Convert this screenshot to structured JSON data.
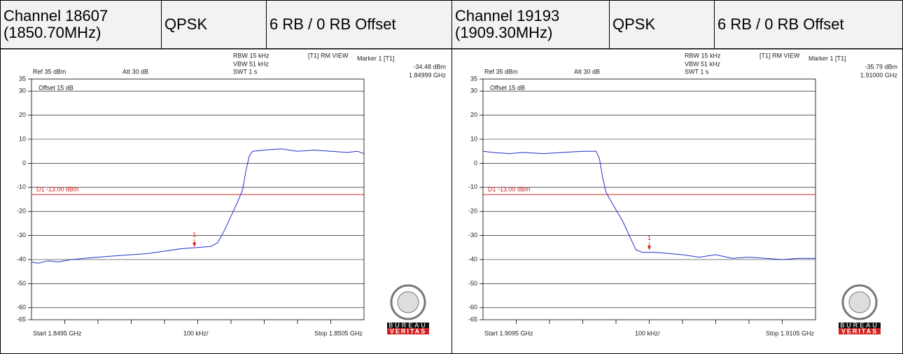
{
  "table": {
    "rows": [
      [
        "Channel 18607 (1850.70MHz)",
        "QPSK",
        "6 RB / 0 RB Offset",
        "Channel 19193 (1909.30MHz)",
        "QPSK",
        "6 RB / 0 RB Offset"
      ]
    ]
  },
  "plots": [
    {
      "ref": "Ref 35 dBm",
      "att": "Att 30 dB",
      "rbw": "RBW 15 kHz",
      "vbw": "VBW 51 kHz",
      "swt": "SWT 1 s",
      "view": "[T1] RM VIEW",
      "marker_title": "Marker 1 [T1]",
      "marker_level": "-34.48 dBm",
      "marker_freq": "1.84999 GHz",
      "offset": "Offset 15 dB",
      "display_line": {
        "label": "D1 -13.00 dBm",
        "value": -13
      },
      "start": "Start 1.8495 GHz",
      "span": "100 kHz/",
      "stop": "Stop 1.8505 GHz",
      "xlim": [
        1.8495,
        1.8505
      ],
      "ylim": [
        -65,
        35
      ],
      "yticks": [
        35,
        30,
        20,
        10,
        0,
        -10,
        -20,
        -30,
        -40,
        -50,
        -60,
        -65
      ],
      "marker": {
        "label": "1",
        "x": 1.84999,
        "y": -34.48
      },
      "trace": {
        "x": [
          1.8495,
          1.84952,
          1.84955,
          1.84958,
          1.84962,
          1.84966,
          1.8497,
          1.84975,
          1.8498,
          1.84985,
          1.8499,
          1.84995,
          1.85,
          1.85004,
          1.85006,
          1.85008,
          1.8501,
          1.85012,
          1.850135,
          1.850145,
          1.850155,
          1.850165,
          1.8502,
          1.85025,
          1.8503,
          1.85035,
          1.8504,
          1.85045,
          1.85048,
          1.8505
        ],
        "y": [
          -41,
          -41.5,
          -40.5,
          -41,
          -40,
          -39.5,
          -39,
          -38.5,
          -38,
          -37.5,
          -36.5,
          -35.5,
          -35,
          -34.5,
          -33,
          -28,
          -22,
          -16,
          -11,
          -3,
          3,
          5,
          5.5,
          6,
          5,
          5.5,
          5,
          4.5,
          5,
          4
        ]
      },
      "logo": {
        "top": "BUREAU",
        "bottom": "VERITAS"
      }
    },
    {
      "ref": "Ref 35 dBm",
      "att": "Att 30 dB",
      "rbw": "RBW 15 kHz",
      "vbw": "VBW 51 kHz",
      "swt": "SWT 1 s",
      "view": "[T1] RM VIEW",
      "marker_title": "Marker 1 [T1]",
      "marker_level": "-35.79 dBm",
      "marker_freq": "1.91000 GHz",
      "offset": "Offset 15 dB",
      "display_line": {
        "label": "D1 -13.00 dBm",
        "value": -13
      },
      "start": "Start 1.9095 GHz",
      "span": "100 kHz/",
      "stop": "Stop 1.9105 GHz",
      "xlim": [
        1.9095,
        1.9105
      ],
      "ylim": [
        -65,
        35
      ],
      "yticks": [
        35,
        30,
        20,
        10,
        0,
        -10,
        -20,
        -30,
        -40,
        -50,
        -60,
        -65
      ],
      "marker": {
        "label": "1",
        "x": 1.91,
        "y": -35.79
      },
      "trace": {
        "x": [
          1.9095,
          1.90953,
          1.90958,
          1.90962,
          1.90968,
          1.90974,
          1.9098,
          1.90984,
          1.90985,
          1.90986,
          1.90987,
          1.90989,
          1.90992,
          1.90994,
          1.90996,
          1.90998,
          1.91002,
          1.91006,
          1.9101,
          1.91015,
          1.9102,
          1.91025,
          1.9103,
          1.91035,
          1.9104,
          1.91045,
          1.9105
        ],
        "y": [
          5,
          4.5,
          4,
          4.5,
          4,
          4.5,
          5,
          5,
          2,
          -6,
          -12,
          -17,
          -24,
          -30,
          -36,
          -37,
          -37,
          -37.5,
          -38,
          -39,
          -38,
          -39.5,
          -39,
          -39.5,
          -40,
          -39.5,
          -39.5
        ]
      },
      "logo": {
        "top": "BUREAU",
        "bottom": "VERITAS"
      }
    }
  ]
}
